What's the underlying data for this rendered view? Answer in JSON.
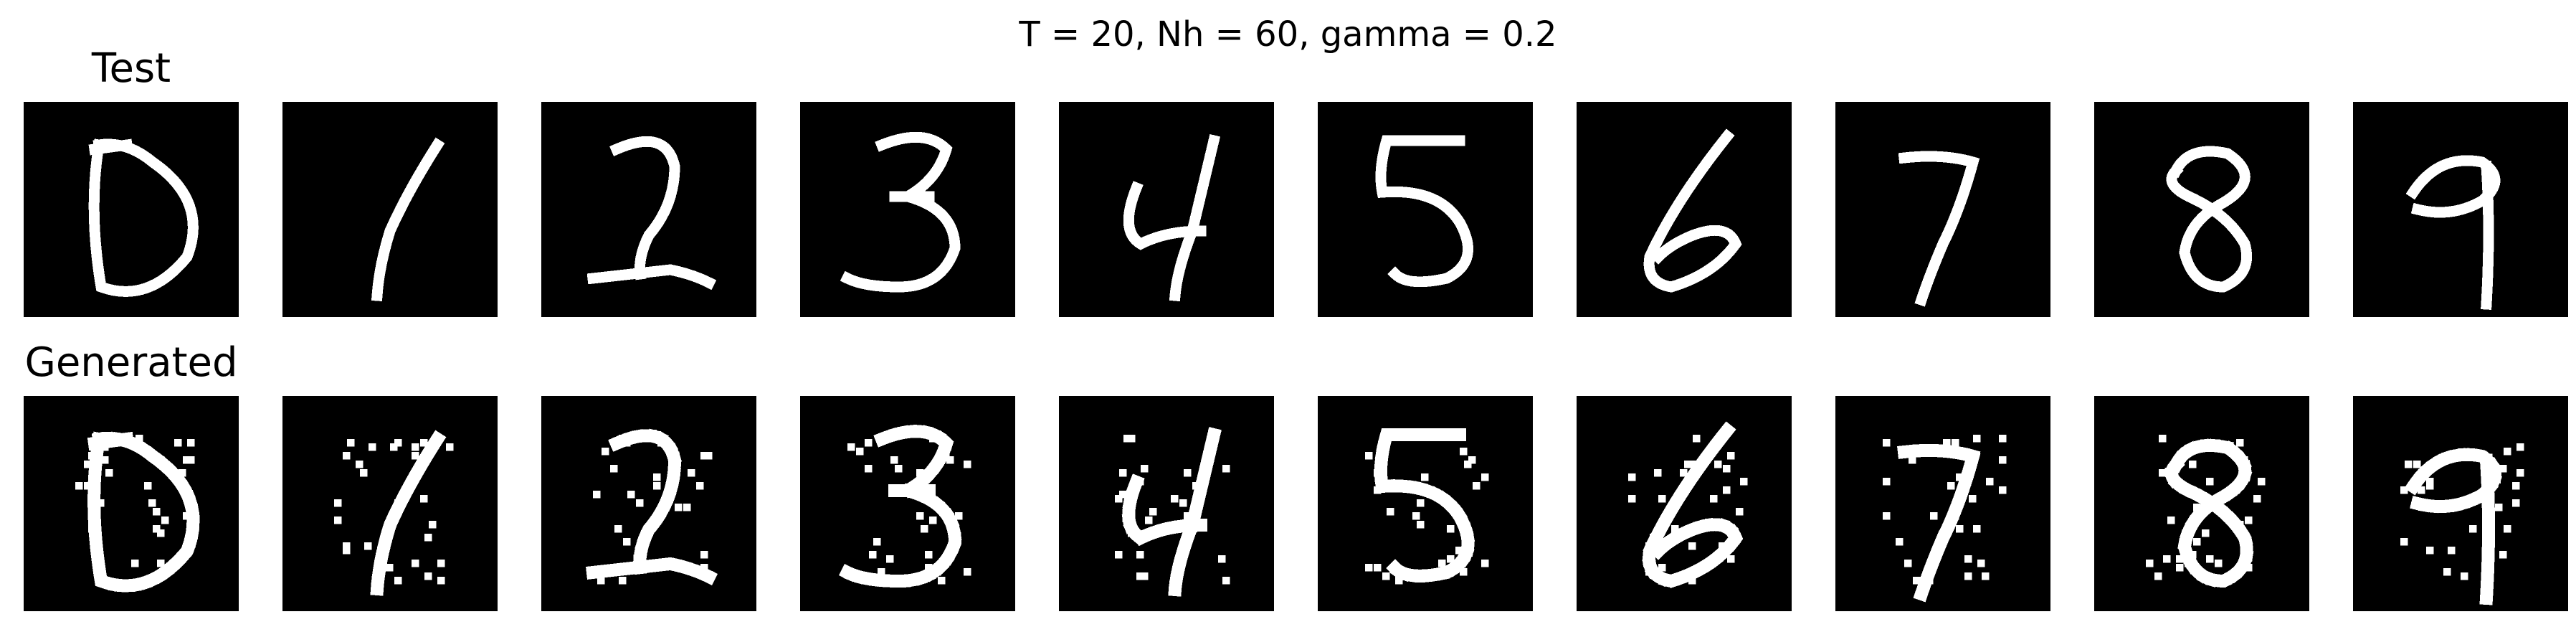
{
  "figure": {
    "title": "T = 20, Nh = 60, gamma = 0.2"
  },
  "rows": [
    {
      "label": "Test",
      "images": [
        {
          "digit": 0
        },
        {
          "digit": 1
        },
        {
          "digit": 2
        },
        {
          "digit": 3
        },
        {
          "digit": 4
        },
        {
          "digit": 5
        },
        {
          "digit": 6
        },
        {
          "digit": 7
        },
        {
          "digit": 8
        },
        {
          "digit": 9
        }
      ]
    },
    {
      "label": "Generated",
      "images": [
        {
          "digit": 0
        },
        {
          "digit": 1
        },
        {
          "digit": 2
        },
        {
          "digit": 3
        },
        {
          "digit": 4
        },
        {
          "digit": 5
        },
        {
          "digit": 6
        },
        {
          "digit": 7
        },
        {
          "digit": 8
        },
        {
          "digit": 9
        }
      ]
    }
  ],
  "colors": {
    "background": "#000000",
    "stroke": "#ffffff"
  }
}
